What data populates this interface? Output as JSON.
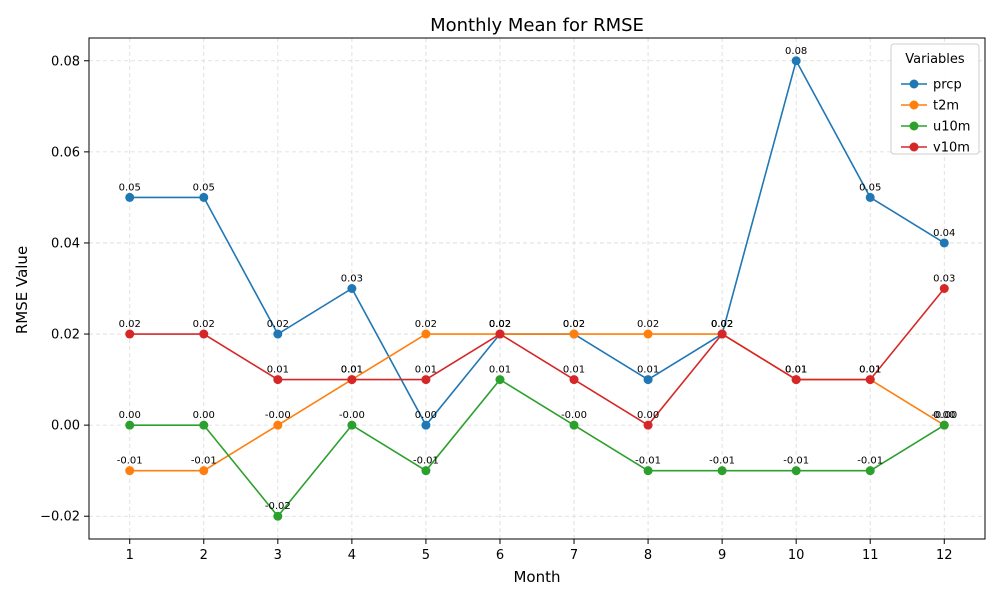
{
  "chart_data": {
    "type": "line",
    "title": "Monthly Mean for RMSE",
    "xlabel": "Month",
    "ylabel": "RMSE Value",
    "x": [
      1,
      2,
      3,
      4,
      5,
      6,
      7,
      8,
      9,
      10,
      11,
      12
    ],
    "ylim": [
      -0.025,
      0.085
    ],
    "yticks": [
      -0.02,
      0.0,
      0.02,
      0.04,
      0.06,
      0.08
    ],
    "ytick_labels": [
      "−0.02",
      "0.00",
      "0.02",
      "0.04",
      "0.06",
      "0.08"
    ],
    "grid": true,
    "legend": {
      "title": "Variables",
      "placement": "top-right"
    },
    "series": [
      {
        "name": "prcp",
        "color": "#1f77b4",
        "values": [
          0.05,
          0.05,
          0.02,
          0.03,
          0.0,
          0.02,
          0.02,
          0.01,
          0.02,
          0.08,
          0.05,
          0.04
        ],
        "labels": [
          "0.05",
          "0.05",
          "0.02",
          "0.03",
          "0.00",
          "0.02",
          "0.02",
          "0.01",
          "0.02",
          "0.08",
          "0.05",
          "0.04"
        ]
      },
      {
        "name": "t2m",
        "color": "#ff7f0e",
        "values": [
          -0.01,
          -0.01,
          0.0,
          0.01,
          0.02,
          0.02,
          0.02,
          0.02,
          0.02,
          0.01,
          0.01,
          0.0
        ],
        "labels": [
          "-0.01",
          "-0.01",
          "-0.00",
          "0.01",
          "0.02",
          "0.02",
          "0.02",
          "0.02",
          "0.02",
          "0.01",
          "0.01",
          "0.00"
        ]
      },
      {
        "name": "u10m",
        "color": "#2ca02c",
        "values": [
          0.0,
          0.0,
          -0.02,
          0.0,
          -0.01,
          0.01,
          0.0,
          -0.01,
          -0.01,
          -0.01,
          -0.01,
          0.0
        ],
        "labels": [
          "0.00",
          "0.00",
          "-0.02",
          "-0.00",
          "-0.01",
          "0.01",
          "-0.00",
          "-0.01",
          "-0.01",
          "-0.01",
          "-0.01",
          "-0.00"
        ]
      },
      {
        "name": "v10m",
        "color": "#d62728",
        "values": [
          0.02,
          0.02,
          0.01,
          0.01,
          0.01,
          0.02,
          0.01,
          0.0,
          0.02,
          0.01,
          0.01,
          0.03
        ],
        "labels": [
          "0.02",
          "0.02",
          "0.01",
          "0.01",
          "0.01",
          "0.02",
          "0.01",
          "0.00",
          "0.02",
          "0.01",
          "0.01",
          "0.03"
        ]
      }
    ]
  }
}
